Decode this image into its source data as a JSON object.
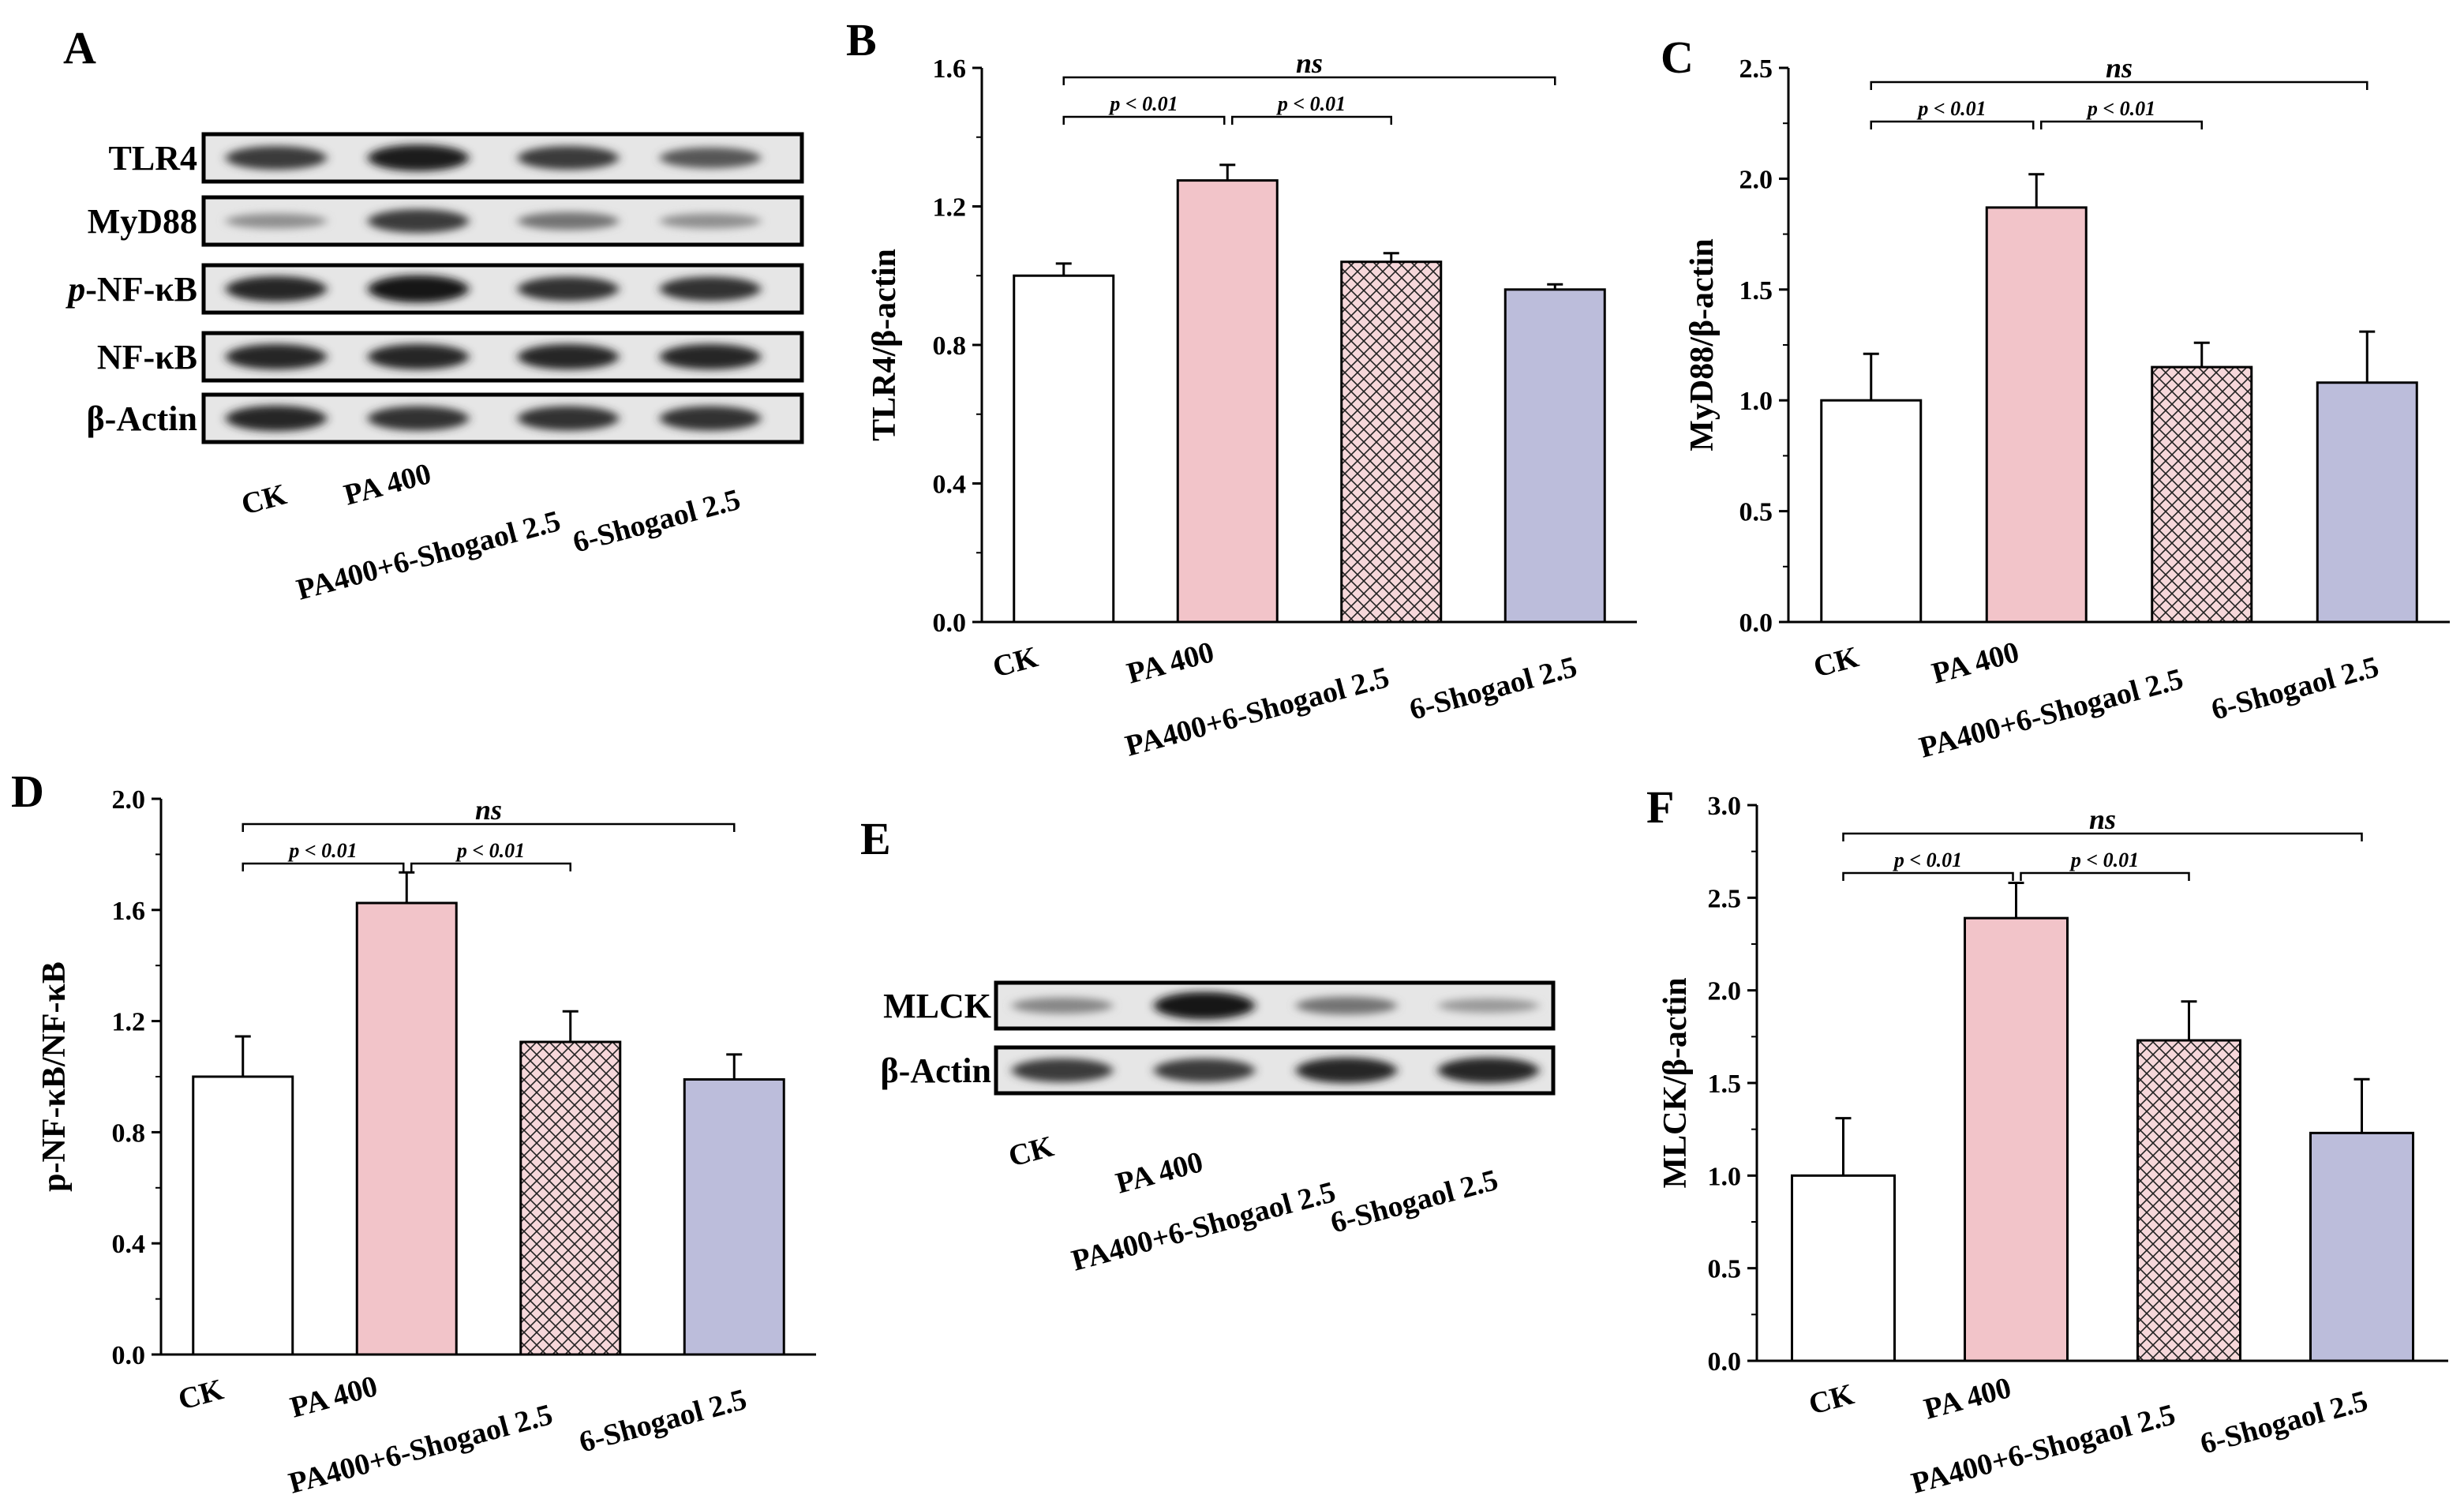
{
  "colors": {
    "ck": "#ffffff",
    "pa400": "#f2c4c9",
    "pa_shogaol": "#f6d7da",
    "shogaol": "#bcbddb",
    "hatch": "#222222",
    "axis": "#000000"
  },
  "groups": [
    "CK",
    "PA 400",
    "PA400+6-Shogaol 2.5",
    "6-Shogaol 2.5"
  ],
  "western_blots": [
    {
      "panel": "A",
      "lanes": [
        "CK",
        "PA 400",
        "PA400+6-Shogaol 2.5",
        "6-Shogaol 2.5"
      ],
      "rows": [
        {
          "label": "TLR4",
          "intensity": [
            0.75,
            0.9,
            0.75,
            0.6
          ]
        },
        {
          "label": "MyD88",
          "intensity": [
            0.3,
            0.75,
            0.45,
            0.3
          ]
        },
        {
          "label_prefix": "p",
          "label": "-NF-κB",
          "intensity": [
            0.85,
            0.95,
            0.8,
            0.8
          ]
        },
        {
          "label": "NF-κB",
          "intensity": [
            0.85,
            0.85,
            0.85,
            0.85
          ]
        },
        {
          "label": "β-Actin",
          "intensity": [
            0.85,
            0.8,
            0.8,
            0.8
          ]
        }
      ]
    },
    {
      "panel": "E",
      "lanes": [
        "CK",
        "PA 400",
        "PA400+6-Shogaol 2.5",
        "6-Shogaol 2.5"
      ],
      "rows": [
        {
          "label": "MLCK",
          "intensity": [
            0.35,
            0.95,
            0.45,
            0.25
          ]
        },
        {
          "label": "β-Actin",
          "intensity": [
            0.75,
            0.75,
            0.85,
            0.85
          ]
        }
      ]
    }
  ],
  "chart_data": [
    {
      "panel": "B",
      "type": "bar",
      "categories": [
        "CK",
        "PA 400",
        "PA400+6-Shogaol 2.5",
        "6-Shogaol 2.5"
      ],
      "values": [
        1.0,
        1.275,
        1.04,
        0.96
      ],
      "errors": [
        0.035,
        0.045,
        0.025,
        0.015
      ],
      "ylabel": "TLR4/β-actin",
      "ylim": [
        0,
        1.6
      ],
      "yticks": [
        "0.0",
        "0.4",
        "0.8",
        "1.2",
        "1.6"
      ],
      "comparisons": [
        {
          "from": 0,
          "to": 1,
          "label": "p < 0.01",
          "level": 1
        },
        {
          "from": 1,
          "to": 2,
          "label": "p < 0.01",
          "level": 1
        },
        {
          "from": 0,
          "to": 3,
          "label": "ns",
          "level": 2
        }
      ]
    },
    {
      "panel": "C",
      "type": "bar",
      "categories": [
        "CK",
        "PA 400",
        "PA400+6-Shogaol 2.5",
        "6-Shogaol 2.5"
      ],
      "values": [
        1.0,
        1.87,
        1.15,
        1.08
      ],
      "errors": [
        0.21,
        0.15,
        0.11,
        0.23
      ],
      "ylabel": "MyD88/β-actin",
      "ylim": [
        0,
        2.5
      ],
      "yticks": [
        "0.0",
        "0.5",
        "1.0",
        "1.5",
        "2.0",
        "2.5"
      ],
      "comparisons": [
        {
          "from": 0,
          "to": 1,
          "label": "p < 0.01",
          "level": 1
        },
        {
          "from": 1,
          "to": 2,
          "label": "p < 0.01",
          "level": 1
        },
        {
          "from": 0,
          "to": 3,
          "label": "ns",
          "level": 2
        }
      ]
    },
    {
      "panel": "D",
      "type": "bar",
      "categories": [
        "CK",
        "PA 400",
        "PA400+6-Shogaol 2.5",
        "6-Shogaol 2.5"
      ],
      "values": [
        1.0,
        1.625,
        1.125,
        0.99
      ],
      "errors": [
        0.145,
        0.11,
        0.11,
        0.09
      ],
      "ylabel": "p-NF-κB/NF-κB",
      "ylim": [
        0,
        2.0
      ],
      "yticks": [
        "0.0",
        "0.4",
        "0.8",
        "1.2",
        "1.6",
        "2.0"
      ],
      "comparisons": [
        {
          "from": 0,
          "to": 1,
          "label": "p < 0.01",
          "level": 1
        },
        {
          "from": 1,
          "to": 2,
          "label": "p < 0.01",
          "level": 1
        },
        {
          "from": 0,
          "to": 3,
          "label": "ns",
          "level": 2
        }
      ]
    },
    {
      "panel": "F",
      "type": "bar",
      "categories": [
        "CK",
        "PA 400",
        "PA400+6-Shogaol 2.5",
        "6-Shogaol 2.5"
      ],
      "values": [
        1.0,
        2.39,
        1.73,
        1.23
      ],
      "errors": [
        0.31,
        0.19,
        0.21,
        0.29
      ],
      "ylabel": "MLCK/β-actin",
      "ylim": [
        0,
        3.0
      ],
      "yticks": [
        "0.0",
        "0.5",
        "1.0",
        "1.5",
        "2.0",
        "2.5",
        "3.0"
      ],
      "comparisons": [
        {
          "from": 0,
          "to": 1,
          "label": "p < 0.01",
          "level": 1
        },
        {
          "from": 1,
          "to": 2,
          "label": "p < 0.01",
          "level": 1
        },
        {
          "from": 0,
          "to": 3,
          "label": "ns",
          "level": 2
        }
      ]
    }
  ]
}
